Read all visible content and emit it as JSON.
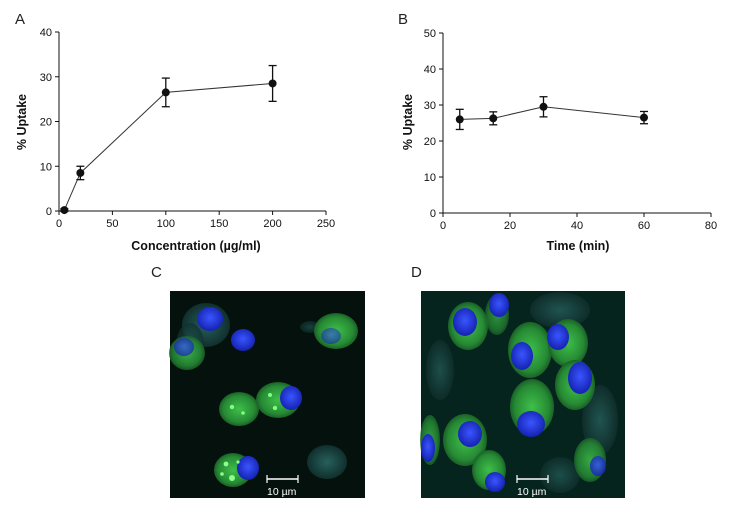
{
  "panels": {
    "a_letter": "A",
    "b_letter": "B",
    "c_letter": "C",
    "d_letter": "D"
  },
  "chart_data": [
    {
      "type": "line",
      "panel": "A",
      "xlabel": "Concentration (µg/ml)",
      "ylabel": "% Uptake",
      "xlim": [
        0,
        250
      ],
      "ylim": [
        0,
        40
      ],
      "xticks": [
        0,
        50,
        100,
        150,
        200,
        250
      ],
      "yticks": [
        0,
        10,
        20,
        30,
        40
      ],
      "grid": false,
      "x": [
        5,
        20,
        100,
        200
      ],
      "series": [
        {
          "values": [
            0.2,
            8.5,
            26.5,
            28.5
          ],
          "error": [
            0.3,
            1.5,
            3.2,
            4.0
          ]
        }
      ]
    },
    {
      "type": "line",
      "panel": "B",
      "xlabel": "Time (min)",
      "ylabel": "% Uptake",
      "xlim": [
        0,
        80
      ],
      "ylim": [
        0,
        50
      ],
      "xticks": [
        0,
        20,
        40,
        60,
        80
      ],
      "yticks": [
        0,
        10,
        20,
        30,
        40,
        50
      ],
      "grid": false,
      "x": [
        5,
        15,
        30,
        60
      ],
      "series": [
        {
          "values": [
            26,
            26.3,
            29.5,
            26.5
          ],
          "error": [
            2.8,
            1.8,
            2.8,
            1.7
          ]
        }
      ]
    }
  ],
  "micrographs": {
    "c_scale_label": "10 µm",
    "d_scale_label": "10 µm",
    "background_color": "#04110c",
    "nucleus_color": "#1c2fd8",
    "cytoplasm_color": "#2fa23a"
  }
}
